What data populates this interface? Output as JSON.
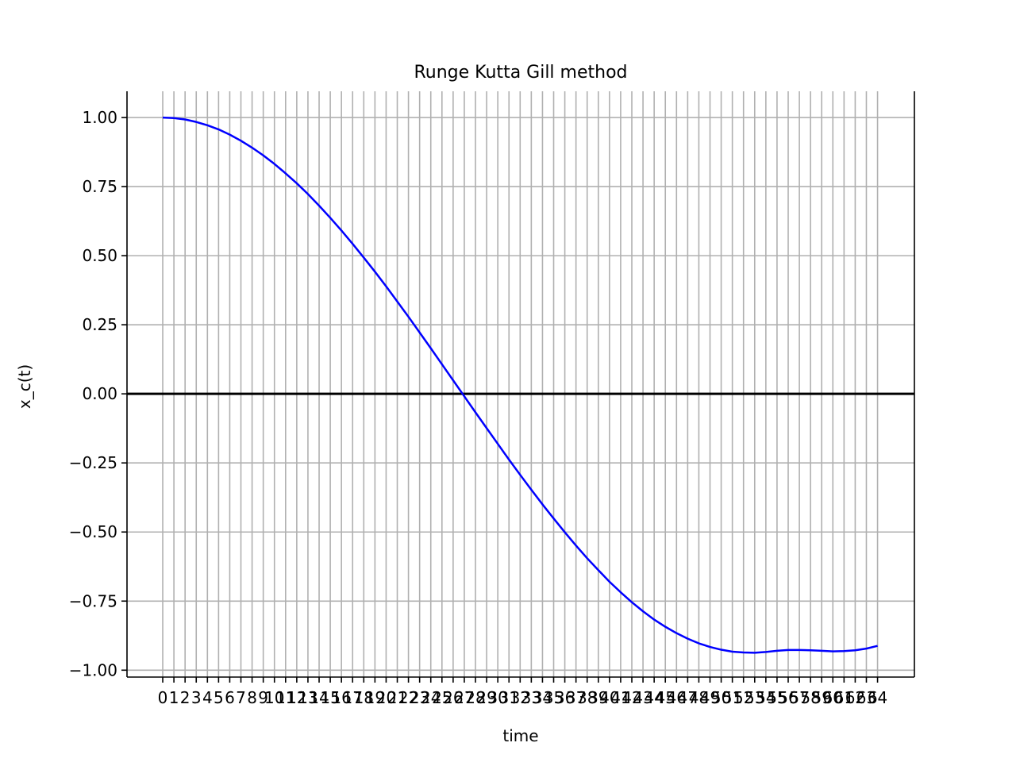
{
  "chart_data": {
    "type": "line",
    "title": "Runge Kutta Gill method",
    "xlabel": "time",
    "ylabel": "x_c(t)",
    "xlim": [
      -3.2,
      67.3
    ],
    "ylim": [
      -1.025,
      1.095
    ],
    "grid": true,
    "x_ticks": [
      0,
      1,
      2,
      3,
      4,
      5,
      6,
      7,
      8,
      9,
      10,
      11,
      12,
      13,
      14,
      15,
      16,
      17,
      18,
      19,
      20,
      21,
      22,
      23,
      24,
      25,
      26,
      27,
      28,
      29,
      30,
      31,
      32,
      33,
      34,
      35,
      36,
      37,
      38,
      39,
      40,
      41,
      42,
      43,
      44,
      45,
      46,
      47,
      48,
      49,
      50,
      51,
      52,
      53,
      54,
      55,
      56,
      57,
      58,
      59,
      60,
      61,
      62,
      63,
      64
    ],
    "y_ticks": [
      1.0,
      0.75,
      0.5,
      0.25,
      0.0,
      -0.25,
      -0.5,
      -0.75,
      -1.0
    ],
    "y_tick_labels": [
      "1.00",
      "0.75",
      "0.50",
      "0.25",
      "0.00",
      "−0.25",
      "−0.50",
      "−0.75",
      "−1.00"
    ],
    "reference_line": {
      "y": 0.0,
      "color": "#000000"
    },
    "series": [
      {
        "color": "#0000ff",
        "x": [
          0,
          1,
          2,
          3,
          4,
          5,
          6,
          7,
          8,
          9,
          10,
          11,
          12,
          13,
          14,
          15,
          16,
          17,
          18,
          19,
          20,
          21,
          22,
          23,
          24,
          25,
          26,
          27,
          28,
          29,
          30,
          31,
          32,
          33,
          34,
          35,
          36,
          37,
          38,
          39,
          40,
          41,
          42,
          43,
          44,
          45,
          46,
          47,
          48,
          49,
          50,
          51,
          52,
          53,
          54,
          55,
          56,
          57,
          58,
          59,
          60,
          61,
          62,
          63,
          64
        ],
        "y": [
          1.0,
          0.998,
          0.993,
          0.984,
          0.972,
          0.957,
          0.938,
          0.916,
          0.891,
          0.863,
          0.832,
          0.798,
          0.762,
          0.723,
          0.681,
          0.637,
          0.591,
          0.543,
          0.493,
          0.442,
          0.389,
          0.334,
          0.279,
          0.222,
          0.165,
          0.107,
          0.049,
          -0.009,
          -0.067,
          -0.124,
          -0.181,
          -0.238,
          -0.293,
          -0.347,
          -0.4,
          -0.451,
          -0.501,
          -0.549,
          -0.595,
          -0.638,
          -0.68,
          -0.718,
          -0.754,
          -0.787,
          -0.817,
          -0.843,
          -0.866,
          -0.886,
          -0.903,
          -0.916,
          -0.926,
          -0.933,
          -0.936,
          -0.937,
          -0.934,
          -0.93,
          -0.927,
          -0.927,
          -0.928,
          -0.93,
          -0.932,
          -0.931,
          -0.928,
          -0.922,
          -0.912
        ]
      }
    ]
  }
}
